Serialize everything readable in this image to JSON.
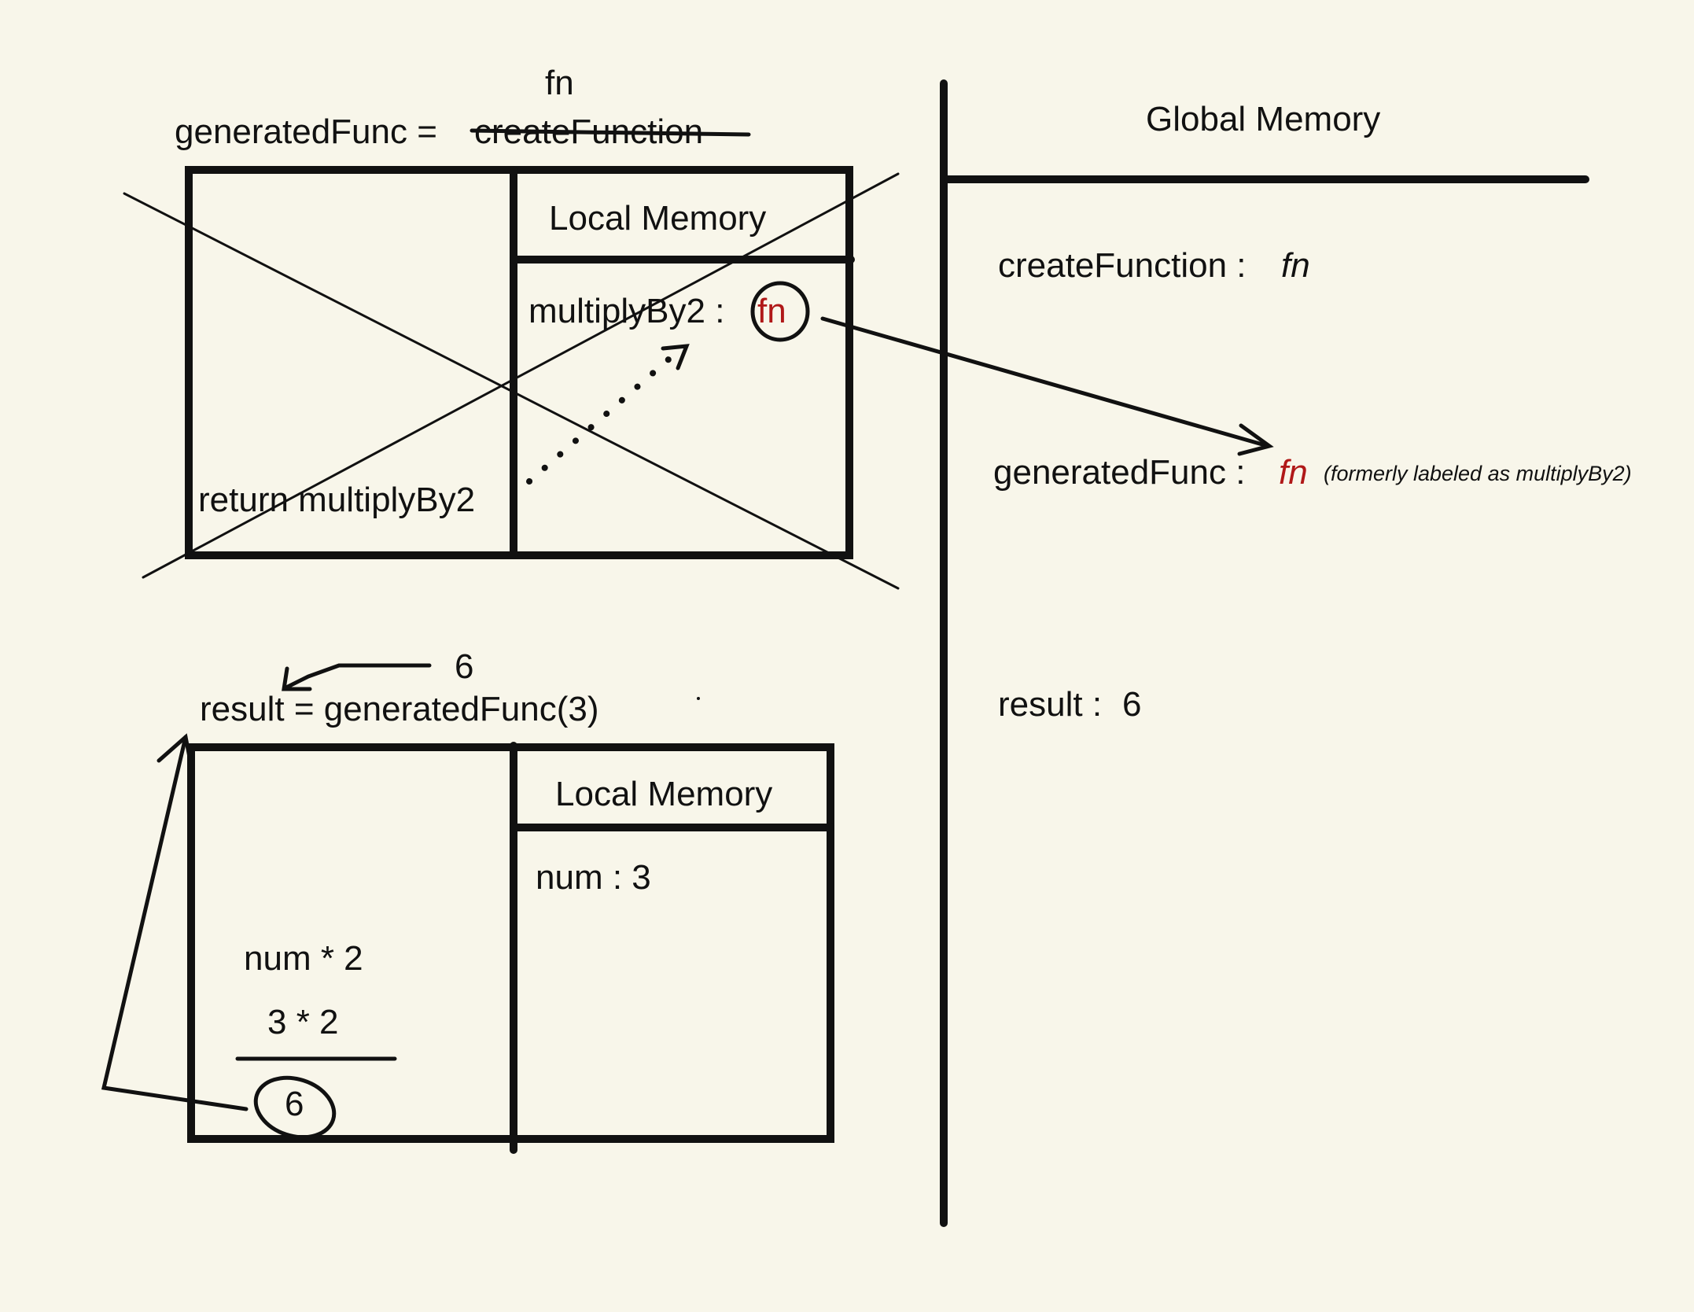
{
  "top_frame": {
    "assign_label": "generatedFunc = ",
    "struck_name": "createFunction",
    "replacement": "fn",
    "local_memory_title": "Local Memory",
    "local_var_name": "multiplyBy2 : ",
    "local_var_value": "fn",
    "return_text": "return multiplyBy2"
  },
  "bottom_frame": {
    "call_text": "result = generatedFunc(3)",
    "return_value": "6",
    "local_memory_title": "Local Memory",
    "local_var": "num : 3",
    "expr": "num * 2",
    "expr_eval": "3 * 2",
    "result_value": "6"
  },
  "global_memory": {
    "title": "Global Memory",
    "entries": [
      {
        "name": "createFunction : ",
        "value": "fn"
      },
      {
        "name": "generatedFunc : ",
        "value": "fn",
        "note": "(formerly labeled as multiplyBy2)"
      },
      {
        "name": "result : ",
        "value": "6"
      }
    ]
  },
  "colors": {
    "background": "#f8f6ea",
    "ink": "#111111",
    "highlight": "#b01818"
  }
}
